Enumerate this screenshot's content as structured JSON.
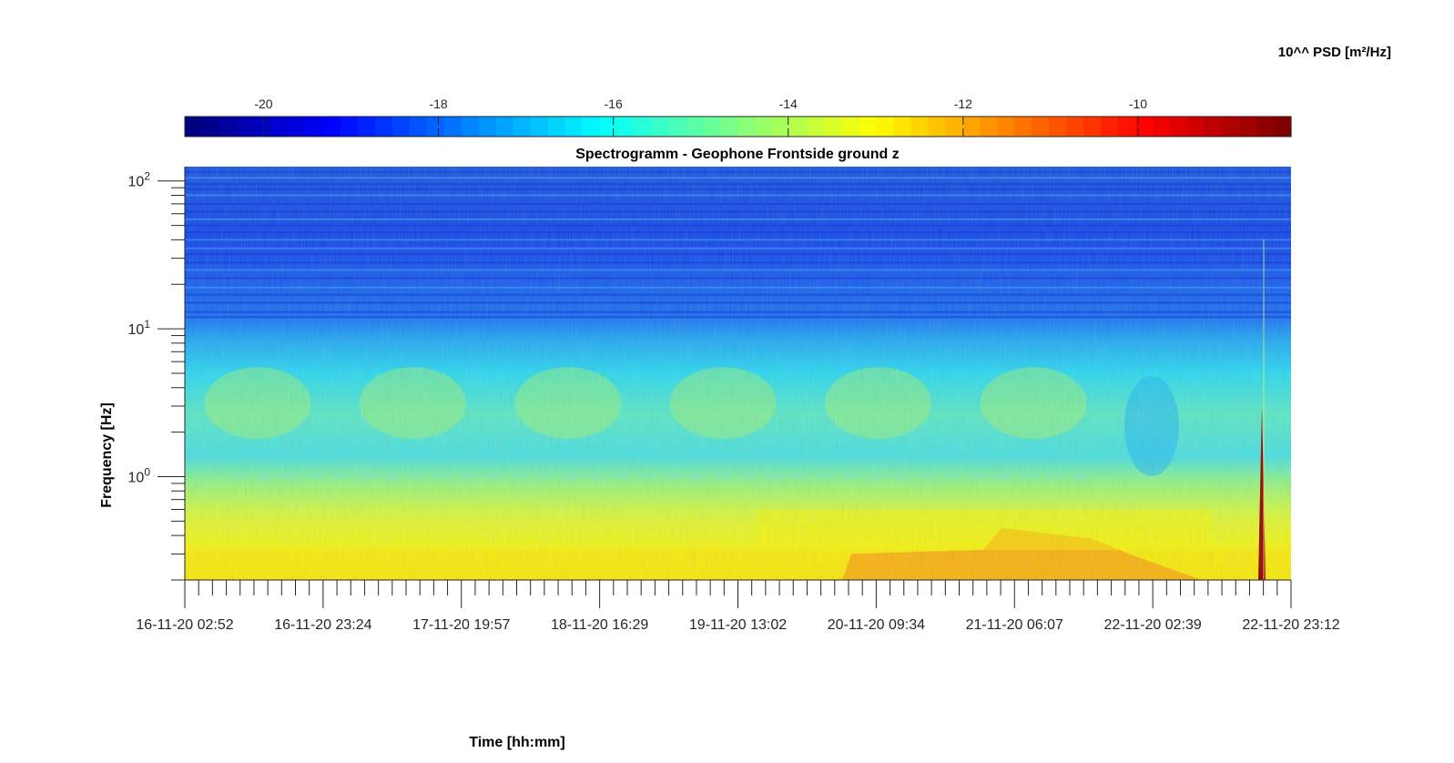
{
  "chart_data": {
    "type": "heatmap",
    "title": "Spectrogramm - Geophone Frontside ground z",
    "xlabel": "Time [hh:mm]",
    "ylabel": "Frequency [Hz]",
    "colorbar_label": "10^^ PSD [m²/Hz]",
    "x_scale": "time",
    "y_scale": "log",
    "x_ticks": [
      "16-11-20 02:52",
      "16-11-20 23:24",
      "17-11-20 19:57",
      "18-11-20 16:29",
      "19-11-20 13:02",
      "20-11-20 09:34",
      "21-11-20 06:07",
      "22-11-20 02:39",
      "22-11-20 23:12"
    ],
    "xlim": [
      "16-11-20 02:52",
      "22-11-20 23:12"
    ],
    "y_ticks": [
      {
        "base": "10",
        "exp": "0",
        "value": 1
      },
      {
        "base": "10",
        "exp": "1",
        "value": 10
      },
      {
        "base": "10",
        "exp": "2",
        "value": 100
      }
    ],
    "ylim": [
      0.2,
      125
    ],
    "colorbar_ticks": [
      "-20",
      "-18",
      "-16",
      "-14",
      "-12",
      "-10"
    ],
    "clim": [
      -20.9,
      -8.25
    ],
    "colormap": "jet",
    "regions": [
      {
        "freq_range": [
          30,
          125
        ],
        "log10_psd": -19.5,
        "desc": "high-frequency band"
      },
      {
        "freq_range": [
          6,
          30
        ],
        "log10_psd": -18.3,
        "desc": "upper band"
      },
      {
        "freq_range": [
          1.2,
          6
        ],
        "log10_psd": -15.5,
        "desc": "mid band with diurnal -14.5 bursts"
      },
      {
        "freq_range": [
          0.3,
          1.2
        ],
        "log10_psd": -14.3,
        "desc": "low band"
      },
      {
        "freq_range": [
          0.2,
          0.3
        ],
        "log10_psd": -12.8,
        "desc": "microseism band, stronger 20-11 to 22-11"
      }
    ],
    "event": {
      "time": "22-11-20 19:00",
      "log10_psd": -8.5,
      "freq_top": 3
    }
  }
}
